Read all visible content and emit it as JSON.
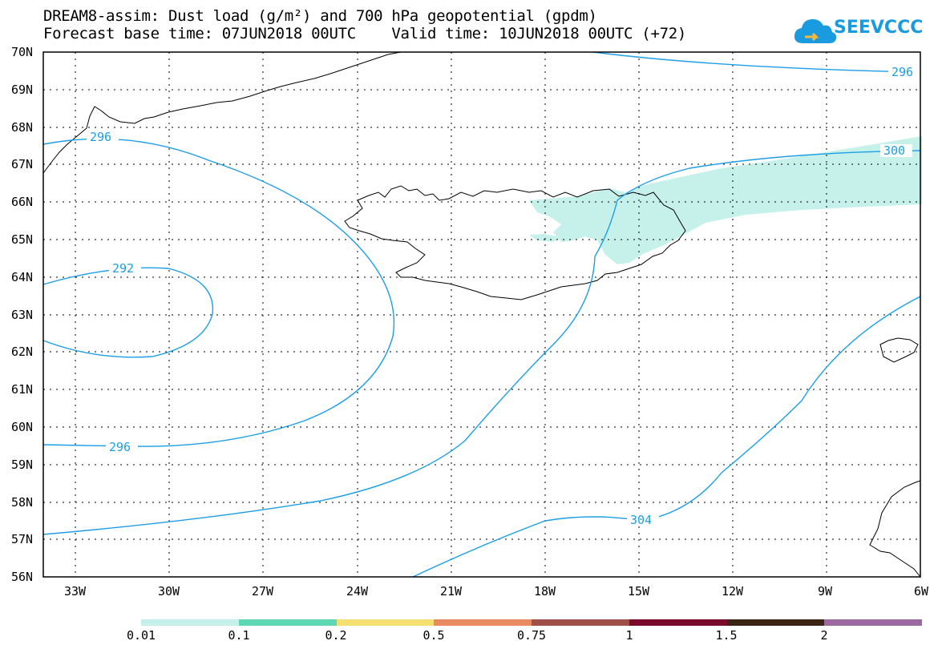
{
  "title": {
    "line1": "DREAM8-assim: Dust load (g/m²) and 700 hPa geopotential (gpdm)",
    "line2": "Forecast base time: 07JUN2018 00UTC    Valid time: 10JUN2018 00UTC (+72)"
  },
  "logo": {
    "text": "SEEVCCC",
    "icon": "cloud-icon",
    "color": "#1a9be0"
  },
  "map": {
    "lat_labels": [
      "70N",
      "69N",
      "68N",
      "67N",
      "66N",
      "65N",
      "64N",
      "63N",
      "62N",
      "61N",
      "60N",
      "59N",
      "58N",
      "57N",
      "56N"
    ],
    "lon_labels": [
      "33W",
      "30W",
      "27W",
      "24W",
      "21W",
      "18W",
      "15W",
      "12W",
      "9W",
      "6W"
    ],
    "contour_color": "#1c9ee6",
    "dust_color": "#c6f1eb",
    "contour_labels": [
      "296",
      "296",
      "292",
      "296",
      "300",
      "304"
    ]
  },
  "colorbar": {
    "colors": [
      "#c6f1eb",
      "#5ed8b4",
      "#f3e070",
      "#e98a62",
      "#9d4f48",
      "#7a0a2b",
      "#3c2414",
      "#9c6aa1"
    ],
    "labels": [
      "0.01",
      "0.1",
      "0.2",
      "0.5",
      "0.75",
      "1",
      "1.5",
      "2"
    ]
  }
}
